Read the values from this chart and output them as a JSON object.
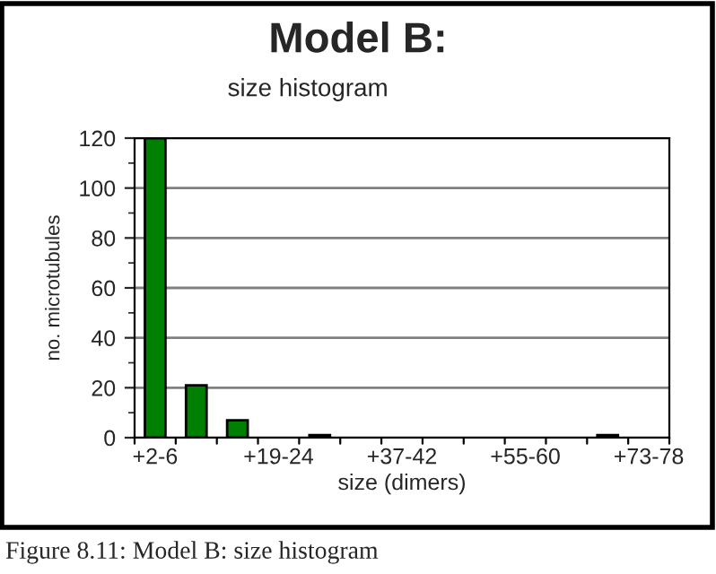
{
  "chart_data": {
    "type": "bar",
    "title": "Model B:",
    "subtitle": "size histogram",
    "xlabel": "size (dimers)",
    "ylabel": "no. microtubules",
    "categories": [
      "+2-6",
      null,
      null,
      "+19-24",
      null,
      null,
      "+37-42",
      null,
      null,
      "+55-60",
      null,
      null,
      "+73-78"
    ],
    "values": [
      120,
      21,
      7,
      0,
      1,
      0,
      0,
      0,
      0,
      0,
      0,
      1,
      0
    ],
    "color": "#008000",
    "ylim": [
      0,
      120
    ],
    "yticks": [
      0,
      20,
      40,
      60,
      80,
      100,
      120
    ],
    "grid": "y",
    "legend": false,
    "annotations": [
      "Figure 8.11: Model B: size histogram"
    ]
  }
}
